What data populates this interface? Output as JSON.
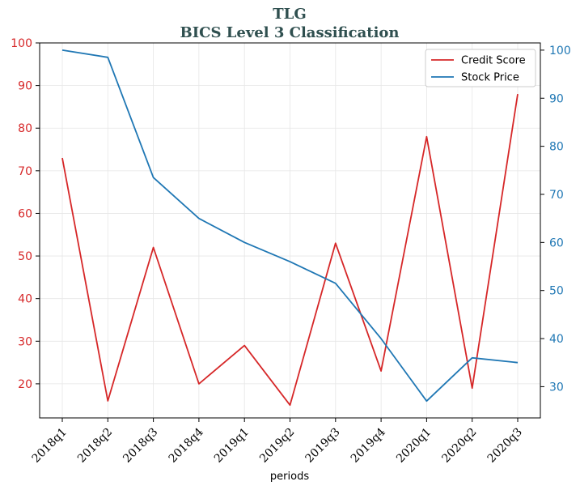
{
  "chart_data": {
    "type": "line",
    "title": "TLG",
    "subtitle": "BICS Level 3 Classification",
    "xlabel": "periods",
    "categories": [
      "2018q1",
      "2018q2",
      "2018q3",
      "2018q4",
      "2019q1",
      "2019q2",
      "2019q3",
      "2019q4",
      "2020q1",
      "2020q2",
      "2020q3"
    ],
    "series": [
      {
        "name": "Credit Score",
        "axis": "left",
        "color": "#d62728",
        "values": [
          73,
          16,
          52,
          20,
          29,
          15,
          53,
          23,
          78,
          19,
          88
        ]
      },
      {
        "name": "Stock Price",
        "axis": "right",
        "color": "#1f77b4",
        "values": [
          100,
          98.5,
          73.5,
          65,
          60,
          56,
          51.5,
          40,
          27,
          36,
          35
        ]
      }
    ],
    "y_left": {
      "lim": [
        12,
        100
      ],
      "ticks": [
        20,
        30,
        40,
        50,
        60,
        70,
        80,
        90,
        100
      ]
    },
    "y_right": {
      "lim": [
        23.5,
        101.5
      ],
      "ticks": [
        30,
        40,
        50,
        60,
        70,
        80,
        90,
        100
      ]
    },
    "grid": true,
    "legend": "top-right"
  }
}
